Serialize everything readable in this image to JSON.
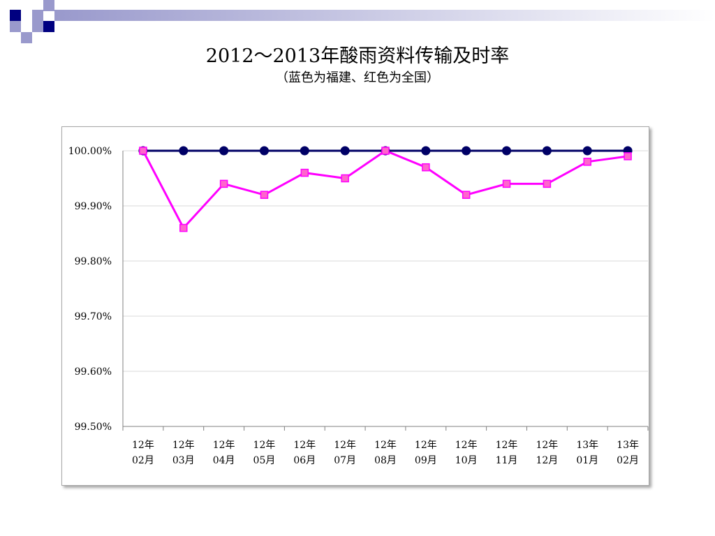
{
  "slide": {
    "title": "2012～2013年酸雨资料传输及时率",
    "subtitle": "（蓝色为福建、红色为全国）"
  },
  "colors": {
    "fujian": "#000066",
    "national": "#ff00ff",
    "national_marker_fill": "#ff66cc",
    "deco_dark": "#000080",
    "deco_light": "#9999cc"
  },
  "chart_data": {
    "type": "line",
    "title": "",
    "xlabel": "",
    "ylabel": "",
    "ylim": [
      99.5,
      100.0
    ],
    "yticks": [
      "100.00%",
      "99.90%",
      "99.80%",
      "99.70%",
      "99.60%",
      "99.50%"
    ],
    "ytick_values": [
      100.0,
      99.9,
      99.8,
      99.7,
      99.6,
      99.5
    ],
    "categories": [
      [
        "12年",
        "02月"
      ],
      [
        "12年",
        "03月"
      ],
      [
        "12年",
        "04月"
      ],
      [
        "12年",
        "05月"
      ],
      [
        "12年",
        "06月"
      ],
      [
        "12年",
        "07月"
      ],
      [
        "12年",
        "08月"
      ],
      [
        "12年",
        "09月"
      ],
      [
        "12年",
        "10月"
      ],
      [
        "12年",
        "11月"
      ],
      [
        "12年",
        "12月"
      ],
      [
        "13年",
        "01月"
      ],
      [
        "13年",
        "02月"
      ]
    ],
    "grid": true,
    "legend": "none",
    "series": [
      {
        "key": "fujian",
        "color": "#000066",
        "marker": "circle",
        "values": [
          100.0,
          100.0,
          100.0,
          100.0,
          100.0,
          100.0,
          100.0,
          100.0,
          100.0,
          100.0,
          100.0,
          100.0,
          100.0
        ]
      },
      {
        "key": "national",
        "color": "#ff00ff",
        "marker": "square",
        "values": [
          100.0,
          99.86,
          99.94,
          99.92,
          99.96,
          99.95,
          100.0,
          99.97,
          99.92,
          99.94,
          99.94,
          99.98,
          99.99
        ]
      }
    ]
  }
}
